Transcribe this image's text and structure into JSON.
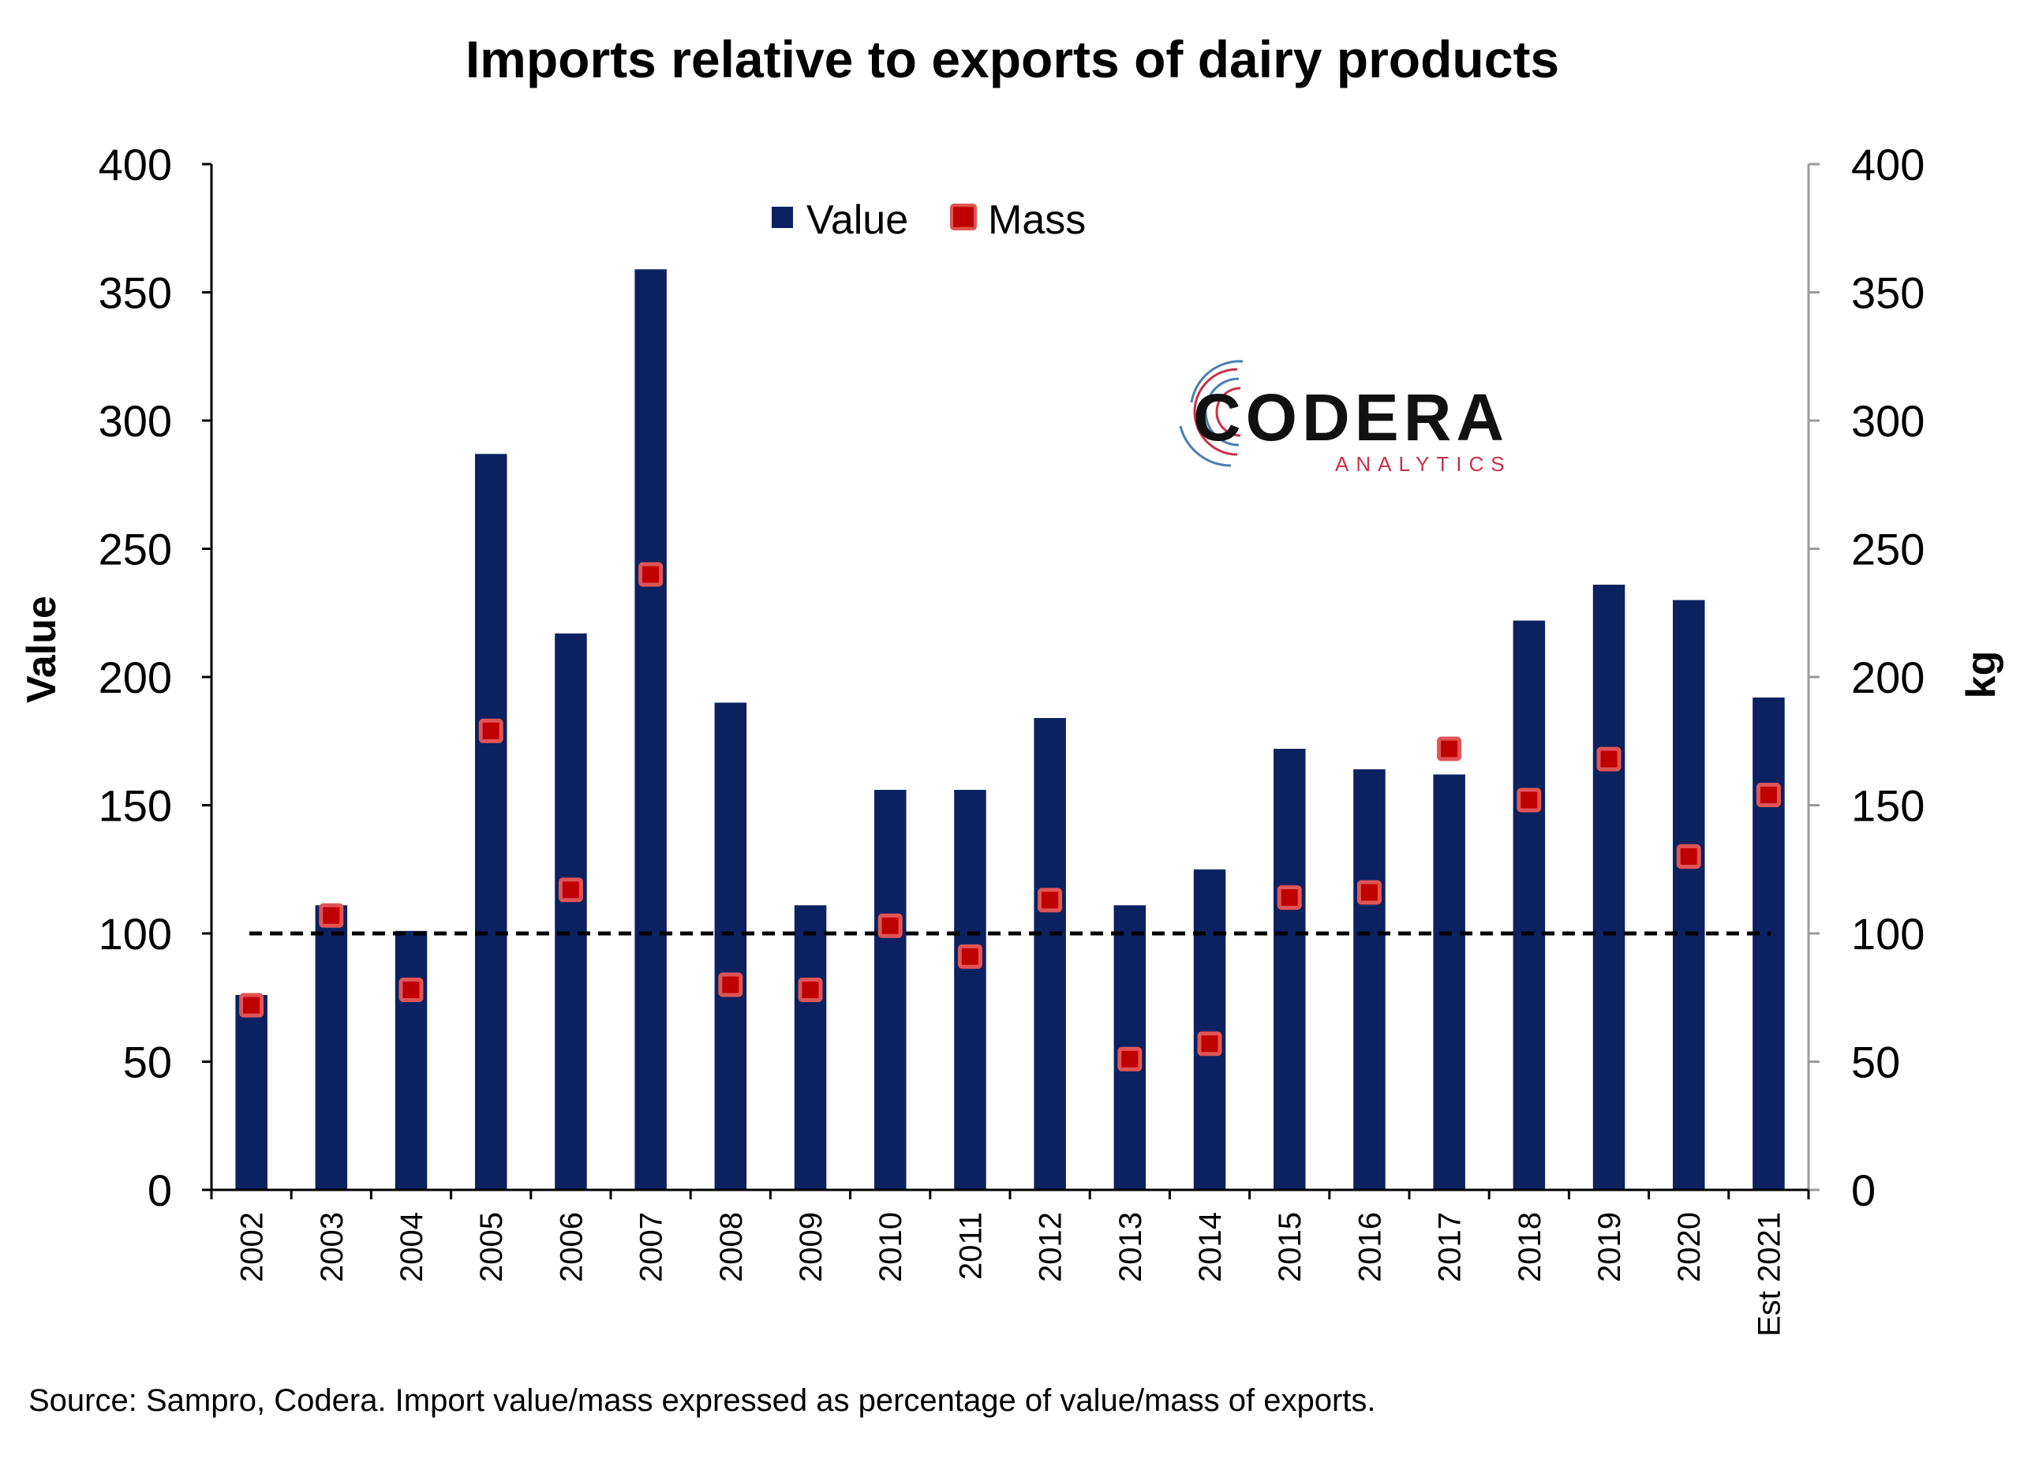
{
  "chart_data": {
    "type": "bar",
    "title": "Imports relative to exports of dairy products",
    "ylabel": "Value",
    "y2label": "kg",
    "ylim": [
      0,
      400
    ],
    "y2lim": [
      0,
      400
    ],
    "yticks": [
      "0",
      "50",
      "100",
      "150",
      "200",
      "250",
      "300",
      "350",
      "400"
    ],
    "categories": [
      "2002",
      "2003",
      "2004",
      "2005",
      "2006",
      "2007",
      "2008",
      "2009",
      "2010",
      "2011",
      "2012",
      "2013",
      "2014",
      "2015",
      "2016",
      "2017",
      "2018",
      "2019",
      "2020",
      "Est 2021"
    ],
    "series": [
      {
        "name": "Value",
        "type": "bar",
        "axis": "left",
        "color": "#0b2160",
        "values": [
          76,
          111,
          101,
          287,
          217,
          359,
          190,
          111,
          156,
          156,
          184,
          111,
          125,
          172,
          164,
          162,
          222,
          236,
          230,
          192
        ]
      },
      {
        "name": "Mass",
        "type": "scatter",
        "axis": "right",
        "color": "#c00000",
        "values": [
          72,
          107,
          78,
          179,
          117,
          240,
          80,
          78,
          103,
          91,
          113,
          51,
          57,
          114,
          116,
          172,
          152,
          168,
          130,
          154
        ]
      }
    ],
    "reference_line": {
      "value": 100,
      "style": "dashed",
      "color": "#000000"
    },
    "legend": {
      "position": "top-center"
    },
    "grid": false,
    "source": "Source: Sampro, Codera. Import value/mass expressed as percentage of value/mass of exports."
  },
  "logo": {
    "name": "CODERA",
    "subtitle": "ANALYTICS"
  },
  "colors": {
    "bar": "#0b2160",
    "marker": "#c00000",
    "marker_border": "#e05555",
    "axis": "#000000",
    "right_axis": "#9a9a9a"
  }
}
